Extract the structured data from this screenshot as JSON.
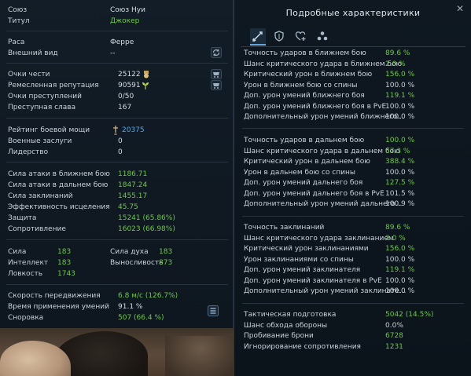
{
  "left": {
    "union": {
      "label": "Союз",
      "value": "Союз Нуи"
    },
    "title": {
      "label": "Титул",
      "value": "Джокер"
    },
    "race": {
      "label": "Раса",
      "value": "Ферре"
    },
    "appearance": {
      "label": "Внешний вид",
      "value": "--"
    },
    "honor": {
      "label": "Очки чести",
      "value": "25122"
    },
    "craft": {
      "label": "Ремесленная репутация",
      "value": "90591"
    },
    "crime": {
      "label": "Очки преступлений",
      "value": "0/50"
    },
    "infamy": {
      "label": "Преступная слава",
      "value": "167"
    },
    "power": {
      "label": "Рейтинг боевой мощи",
      "value": "20375"
    },
    "merits": {
      "label": "Военные заслуги",
      "value": "0"
    },
    "leadership": {
      "label": "Лидерство",
      "value": "0"
    },
    "combat": [
      {
        "label": "Сила атаки в ближнем бою",
        "value": "1186.71"
      },
      {
        "label": "Сила атаки в дальнем бою",
        "value": "1847.24"
      },
      {
        "label": "Сила заклинаний",
        "value": "1455.17"
      },
      {
        "label": "Эффективность исцеления",
        "value": "45.75"
      },
      {
        "label": "Защита",
        "value": "15241 (65.86%)"
      },
      {
        "label": "Сопротивление",
        "value": "16023 (66.98%)"
      }
    ],
    "attrs": {
      "str": {
        "label": "Сила",
        "value": "183"
      },
      "spirit": {
        "label": "Сила духа",
        "value": "183"
      },
      "int": {
        "label": "Интеллект",
        "value": "183"
      },
      "stam": {
        "label": "Выносливость",
        "value": "873"
      },
      "agi": {
        "label": "Ловкость",
        "value": "1743"
      }
    },
    "speed": [
      {
        "label": "Скорость передвижения",
        "value": "6.8 м/с (126.7%)"
      },
      {
        "label": "Время применения умений",
        "value": "91.1 %"
      },
      {
        "label": "Сноровка",
        "value": "507 (66.4 %)"
      }
    ]
  },
  "right": {
    "title": "Подробные характеристики",
    "close": "✕",
    "melee": [
      {
        "label": "Точность ударов в ближнем бою",
        "value": "89.6 %"
      },
      {
        "label": "Шанс критического удара в ближнем бою",
        "value": "2.0 %"
      },
      {
        "label": "Критический урон в ближнем бою",
        "value": "156.0 %"
      },
      {
        "label": "Урон в ближнем бою со спины",
        "value": "100.0 %"
      },
      {
        "label": "Доп. урон умений ближнего боя",
        "value": "119.1 %"
      },
      {
        "label": "Доп. урон умений ближнего боя в PvE",
        "value": "100.0 %"
      },
      {
        "label": "Дополнительный урон умений ближнего...",
        "value": "100.0 %"
      }
    ],
    "ranged": [
      {
        "label": "Точность ударов в дальнем бою",
        "value": "100.0 %"
      },
      {
        "label": "Шанс критического удара в дальнем бою",
        "value": "67.3 %"
      },
      {
        "label": "Критический урон в дальнем бою",
        "value": "388.4 %"
      },
      {
        "label": "Урон в дальнем бою со спины",
        "value": "100.0 %"
      },
      {
        "label": "Доп. урон умений дальнего боя",
        "value": "127.5 %"
      },
      {
        "label": "Доп. урон умений дальнего боя в PvE",
        "value": "101.5 %"
      },
      {
        "label": "Дополнительный урон умений дальнего...",
        "value": "100.9 %"
      }
    ],
    "magic": [
      {
        "label": "Точность заклинаний",
        "value": "89.6 %"
      },
      {
        "label": "Шанс критического удара заклинанием",
        "value": "2.0 %"
      },
      {
        "label": "Критический урон заклинаниями",
        "value": "156.0 %"
      },
      {
        "label": "Урон заклинаниями со спины",
        "value": "100.0 %"
      },
      {
        "label": "Доп. урон умений заклинателя",
        "value": "119.1 %"
      },
      {
        "label": "Доп. урон умений заклинателя в PvE",
        "value": "100.0 %"
      },
      {
        "label": "Дополнительный урон умений заклинате...",
        "value": "100.0 %"
      }
    ],
    "tactics": [
      {
        "label": "Тактическая подготовка",
        "value": "5042 (14.5%)"
      },
      {
        "label": "Шанс обхода обороны",
        "value": "0.0%"
      },
      {
        "label": "Пробивание брони",
        "value": "6728"
      },
      {
        "label": "Игнорирование сопротивления",
        "value": "1231"
      }
    ]
  },
  "colors": {
    "green": "#6fc74a",
    "blue": "#4fa9e8",
    "text": "#c9d2da"
  }
}
